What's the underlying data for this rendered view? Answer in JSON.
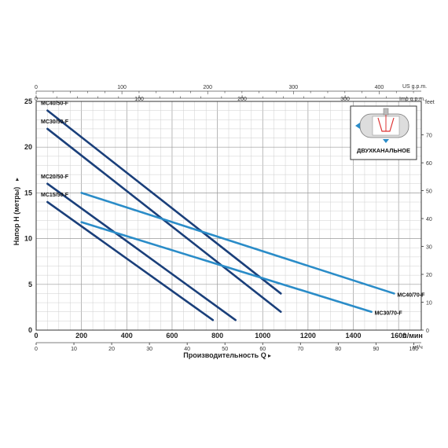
{
  "chart_data": {
    "type": "line",
    "title": "",
    "xlabel": "Производительность Q",
    "xlabel_arrow": "▸",
    "ylabel": "Напор H (метры)",
    "ylabel_arrow": "▸",
    "x_unit_label": "л/мин",
    "x_m3h_unit_label": "м³/ч",
    "y_ft_unit_label": "feet",
    "us_gpm_label": "US g.p.m.",
    "imp_gpm_label": "Imp g.p.m.",
    "xlim": [
      0,
      1700
    ],
    "ylim": [
      0,
      25
    ],
    "grid": true,
    "x_ticks": [
      "0",
      "200",
      "400",
      "600",
      "800",
      "1000",
      "1200",
      "1400",
      "1600"
    ],
    "y_ticks": [
      "0",
      "5",
      "10",
      "15",
      "20",
      "25"
    ],
    "m3h_ticks": [
      "0",
      "10",
      "20",
      "30",
      "40",
      "50",
      "60",
      "70",
      "80",
      "90",
      "100"
    ],
    "feet_ticks": [
      "0",
      "10",
      "20",
      "30",
      "40",
      "50",
      "60",
      "70"
    ],
    "us_gpm_ticks": [
      "0",
      "100",
      "200",
      "300",
      "400"
    ],
    "imp_gpm_ticks": [
      "0",
      "100",
      "200",
      "300"
    ],
    "series": [
      {
        "name": "MC40/50-F",
        "color": "#1a3f7a",
        "x": [
          50,
          1080
        ],
        "y": [
          24,
          4
        ]
      },
      {
        "name": "MC30/50-F",
        "color": "#1a3f7a",
        "x": [
          50,
          1080
        ],
        "y": [
          22,
          2
        ]
      },
      {
        "name": "MC20/50-F",
        "color": "#1a3f7a",
        "x": [
          50,
          880
        ],
        "y": [
          16,
          1.1
        ]
      },
      {
        "name": "MC15/50-F",
        "color": "#1a3f7a",
        "x": [
          50,
          780
        ],
        "y": [
          14,
          1.1
        ]
      },
      {
        "name": "MC40/70-F",
        "color": "#2a8cc8",
        "x": [
          200,
          1580
        ],
        "y": [
          15,
          4
        ]
      },
      {
        "name": "MC30/70-F",
        "color": "#2a8cc8",
        "x": [
          200,
          1480
        ],
        "y": [
          11.8,
          2
        ]
      }
    ],
    "annotation": {
      "label": "ДВУХКАНАЛЬНОЕ",
      "icon": "double-channel-impeller-icon",
      "placement": "top-right"
    }
  }
}
